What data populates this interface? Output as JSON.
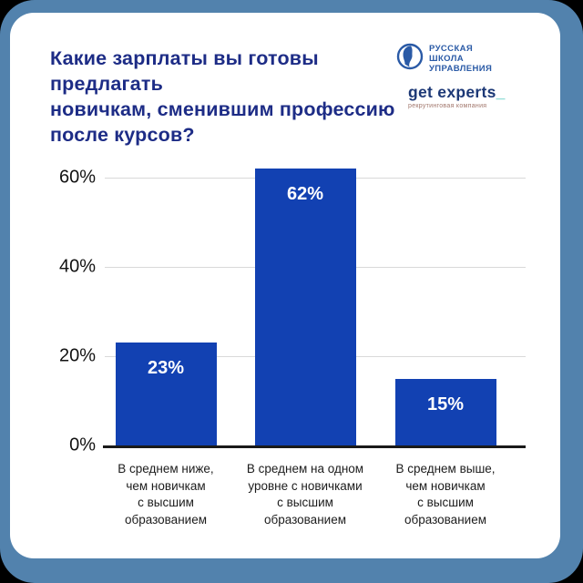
{
  "frame": {
    "outer_background": "#000000",
    "border_color": "#5282ad",
    "card_background": "#ffffff"
  },
  "header": {
    "title_lines": [
      "Какие зарплаты вы готовы предлагать",
      "новичкам, сменившим профессию",
      "после курсов?"
    ],
    "title_color": "#1d2c86"
  },
  "logos": {
    "rsu": {
      "lines": [
        "РУССКАЯ",
        "ШКОЛА",
        "УПРАВЛЕНИЯ"
      ],
      "color": "#2a5aa6",
      "icon": "profile-globe-icon"
    },
    "get_experts": {
      "name": "get experts",
      "underscore": "_",
      "tagline": "рекрутинговая компания",
      "name_color": "#1c3876",
      "underscore_color": "#3cc1b7",
      "tagline_color": "#a1766b"
    }
  },
  "chart_data": {
    "type": "bar",
    "title": "Какие зарплаты вы готовы предлагать новичкам, сменившим профессию после курсов?",
    "categories": [
      "В среднем ниже, чем новичкам с высшим образованием",
      "В среднем на одном уровне с новичками с высшим образованием",
      "В среднем выше, чем новичкам с высшим образованием"
    ],
    "category_lines": [
      [
        "В среднем ниже,",
        "чем новичкам",
        "с высшим",
        "образованием"
      ],
      [
        "В среднем на одном",
        "уровне с новичками",
        "с высшим",
        "образованием"
      ],
      [
        "В среднем выше,",
        "чем новичкам",
        "с высшим",
        "образованием"
      ]
    ],
    "values": [
      23,
      62,
      15
    ],
    "value_labels": [
      "23%",
      "62%",
      "15%"
    ],
    "yticks": [
      0,
      20,
      40,
      60
    ],
    "ytick_labels": [
      "0%",
      "20%",
      "40%",
      "60%"
    ],
    "ylim": [
      0,
      66
    ],
    "grid": true,
    "legend": false,
    "bar_color": "#1241b2",
    "value_label_color": "#ffffff",
    "grid_color": "#d9d9d9",
    "axis_color": "#1a1a1a"
  }
}
